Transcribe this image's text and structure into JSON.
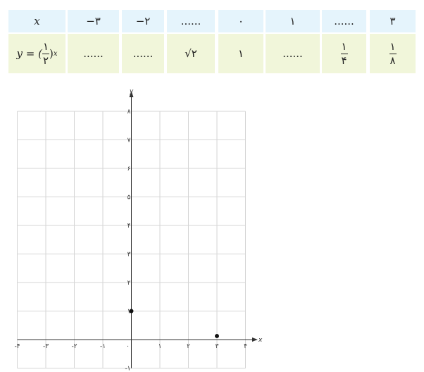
{
  "table": {
    "header_label": "x",
    "x_values": [
      "−۳",
      "−۲",
      "......",
      "۰",
      "۱",
      "......",
      "۳"
    ],
    "row_label": {
      "lhs": "y = (",
      "num": "۱",
      "den": "۲",
      "rhs": ")",
      "exp": "x"
    },
    "y_values": [
      "......",
      "......",
      "√۲",
      "۱",
      "......",
      {
        "num": "۱",
        "den": "۴"
      },
      {
        "num": "۱",
        "den": "۸"
      }
    ]
  },
  "graph": {
    "x_axis_label": "x",
    "y_axis_label": "y",
    "x_ticks": [
      "-۴",
      "-۳",
      "-۲",
      "-۱",
      "۰",
      "۱",
      "۲",
      "۳",
      "۴"
    ],
    "y_ticks": [
      "-۱",
      "۱",
      "۲",
      "۳",
      "۴",
      "۵",
      "۶",
      "۷",
      "۸"
    ],
    "x_range": [
      -4,
      4
    ],
    "y_range": [
      -1,
      8
    ],
    "points": [
      {
        "x": 0,
        "y": 1
      },
      {
        "x": 3,
        "y": 0.125
      }
    ],
    "grid": true
  }
}
